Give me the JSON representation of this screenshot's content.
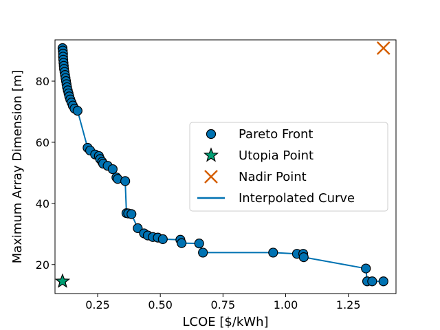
{
  "chart_data": {
    "type": "scatter",
    "xlabel": "LCOE [$/kWh]",
    "ylabel": "Maximum Array Dimension [m]",
    "xlim": [
      0.08,
      1.44
    ],
    "ylim": [
      10.5,
      93.5
    ],
    "xticks": [
      0.25,
      0.5,
      0.75,
      1.0,
      1.25
    ],
    "xtick_labels": [
      "0.25",
      "0.50",
      "0.75",
      "1.00",
      "1.25"
    ],
    "yticks": [
      20,
      40,
      60,
      80
    ],
    "ytick_labels": [
      "20",
      "40",
      "60",
      "80"
    ],
    "grid": false,
    "legend_position": "center-right",
    "colors": {
      "pareto_fill": "#0072B2",
      "pareto_edge": "#000000",
      "utopia": "#009E73",
      "nadir": "#D55E00",
      "curve": "#0072B2"
    },
    "legend": [
      "Pareto Front",
      "Utopia Point",
      "Nadir Point",
      "Interpolated Curve"
    ],
    "pareto_front": [
      [
        0.11,
        90.8
      ],
      [
        0.111,
        90.0
      ],
      [
        0.112,
        89.0
      ],
      [
        0.112,
        88.0
      ],
      [
        0.113,
        87.0
      ],
      [
        0.114,
        86.0
      ],
      [
        0.115,
        85.0
      ],
      [
        0.116,
        84.0
      ],
      [
        0.118,
        83.0
      ],
      [
        0.12,
        82.0
      ],
      [
        0.122,
        81.0
      ],
      [
        0.124,
        80.0
      ],
      [
        0.126,
        79.0
      ],
      [
        0.128,
        78.0
      ],
      [
        0.131,
        77.0
      ],
      [
        0.134,
        76.0
      ],
      [
        0.137,
        75.0
      ],
      [
        0.141,
        74.0
      ],
      [
        0.146,
        73.0
      ],
      [
        0.151,
        72.0
      ],
      [
        0.158,
        71.0
      ],
      [
        0.17,
        70.3
      ],
      [
        0.21,
        58.2
      ],
      [
        0.22,
        57.3
      ],
      [
        0.24,
        56.0
      ],
      [
        0.255,
        55.5
      ],
      [
        0.26,
        54.5
      ],
      [
        0.268,
        53.6
      ],
      [
        0.272,
        53.0
      ],
      [
        0.29,
        52.3
      ],
      [
        0.31,
        51.2
      ],
      [
        0.325,
        48.5
      ],
      [
        0.33,
        48.0
      ],
      [
        0.36,
        47.3
      ],
      [
        0.365,
        36.8
      ],
      [
        0.372,
        36.7
      ],
      [
        0.385,
        36.5
      ],
      [
        0.41,
        31.9
      ],
      [
        0.435,
        30.2
      ],
      [
        0.45,
        29.5
      ],
      [
        0.47,
        29.0
      ],
      [
        0.49,
        28.8
      ],
      [
        0.51,
        28.3
      ],
      [
        0.58,
        28.1
      ],
      [
        0.585,
        27.0
      ],
      [
        0.655,
        26.9
      ],
      [
        0.67,
        23.9
      ],
      [
        0.95,
        23.9
      ],
      [
        1.045,
        23.5
      ],
      [
        1.07,
        23.5
      ],
      [
        1.072,
        22.4
      ],
      [
        1.32,
        18.7
      ],
      [
        1.325,
        14.5
      ],
      [
        1.345,
        14.5
      ],
      [
        1.39,
        14.5
      ]
    ],
    "utopia_point": [
      0.11,
      14.5
    ],
    "nadir_point": [
      1.39,
      90.8
    ],
    "interpolated_curve": [
      [
        0.11,
        90.8
      ],
      [
        0.112,
        88.0
      ],
      [
        0.116,
        84.0
      ],
      [
        0.122,
        81.0
      ],
      [
        0.128,
        78.0
      ],
      [
        0.137,
        75.0
      ],
      [
        0.146,
        73.0
      ],
      [
        0.158,
        71.0
      ],
      [
        0.17,
        70.3
      ],
      [
        0.21,
        58.2
      ],
      [
        0.22,
        57.3
      ],
      [
        0.24,
        56.0
      ],
      [
        0.26,
        54.5
      ],
      [
        0.272,
        53.0
      ],
      [
        0.29,
        52.3
      ],
      [
        0.31,
        51.2
      ],
      [
        0.325,
        48.5
      ],
      [
        0.36,
        47.3
      ],
      [
        0.365,
        36.8
      ],
      [
        0.385,
        36.5
      ],
      [
        0.41,
        31.9
      ],
      [
        0.435,
        30.2
      ],
      [
        0.47,
        29.0
      ],
      [
        0.51,
        28.3
      ],
      [
        0.58,
        28.1
      ],
      [
        0.585,
        27.0
      ],
      [
        0.655,
        26.9
      ],
      [
        0.67,
        23.9
      ],
      [
        0.95,
        23.9
      ],
      [
        1.045,
        23.5
      ],
      [
        1.07,
        23.5
      ],
      [
        1.072,
        22.4
      ],
      [
        1.32,
        18.7
      ],
      [
        1.325,
        14.5
      ],
      [
        1.39,
        14.5
      ]
    ]
  }
}
